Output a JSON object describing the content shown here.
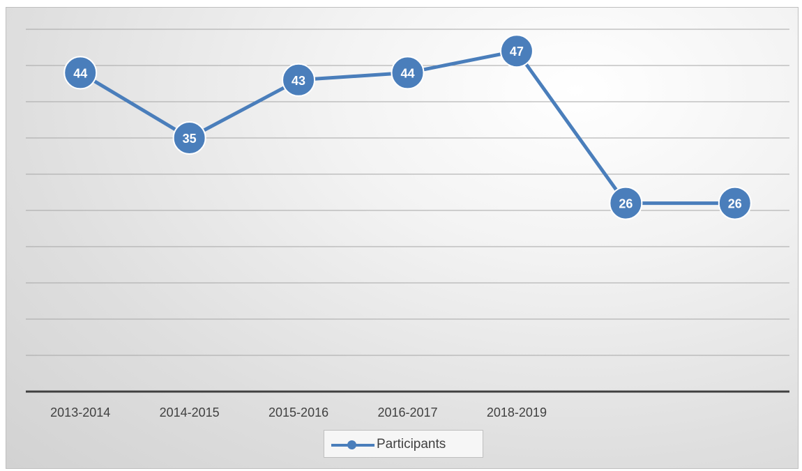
{
  "chart_data": {
    "type": "line",
    "categories": [
      "2013-2014",
      "2014-2015",
      "2015-2016",
      "2016-2017",
      "2018-2019",
      "",
      ""
    ],
    "series": [
      {
        "name": "Participants",
        "values": [
          44,
          35,
          43,
          44,
          47,
          26,
          26
        ],
        "color": "#4a7ebb"
      }
    ],
    "ylim": [
      0,
      50
    ],
    "grid": true,
    "legend": "bottom",
    "title": "",
    "xlabel": "",
    "ylabel": ""
  }
}
